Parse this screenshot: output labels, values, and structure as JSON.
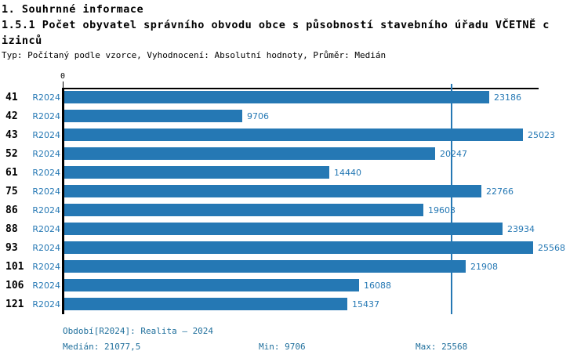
{
  "header": {
    "title": "1. Souhrnné informace",
    "subtitle_line1": "1.5.1 Počet obyvatel správního obvodu obce s působností stavebního úřadu VČETNĚ c",
    "subtitle_line2": "izinců",
    "meta": "Typ: Počítaný podle vzorce, Vyhodnocení: Absolutní hodnoty, Průměr: Medián"
  },
  "chart_data": {
    "type": "bar",
    "orientation": "horizontal",
    "title": "1.5.1 Počet obyvatel správního obvodu obce s působností stavebního úřadu VČETNĚ cizinců",
    "categories": [
      "41",
      "42",
      "43",
      "52",
      "61",
      "75",
      "86",
      "88",
      "93",
      "101",
      "106",
      "121"
    ],
    "series": [
      {
        "name": "R2024",
        "values": [
          23186,
          9706,
          25023,
          20247,
          14440,
          22766,
          19603,
          23934,
          25568,
          21908,
          16088,
          15437
        ]
      }
    ],
    "value_labels": [
      "23186",
      "9706",
      "25023",
      "20247",
      "14440",
      "22766",
      "19603",
      "23934",
      "25568",
      "21908",
      "16088",
      "15437"
    ],
    "xlabel": "",
    "ylabel": "",
    "xlim": [
      0,
      25882
    ],
    "x_tick_labels": [
      "0"
    ],
    "grid": false,
    "legend_position": "none",
    "median_reference_line": 21077.5
  },
  "footer": {
    "period": "Období[R2024]: Realita – 2024",
    "median": "Medián: 21077,5",
    "min": "Min: 9706",
    "max": "Max: 25568"
  },
  "colors": {
    "bar": "#2578B4",
    "value_text": "#2578B4",
    "series_text": "#2578B4",
    "median_line": "#2578B4",
    "footer_text": "#1F6F9C",
    "axis": "#000000"
  }
}
